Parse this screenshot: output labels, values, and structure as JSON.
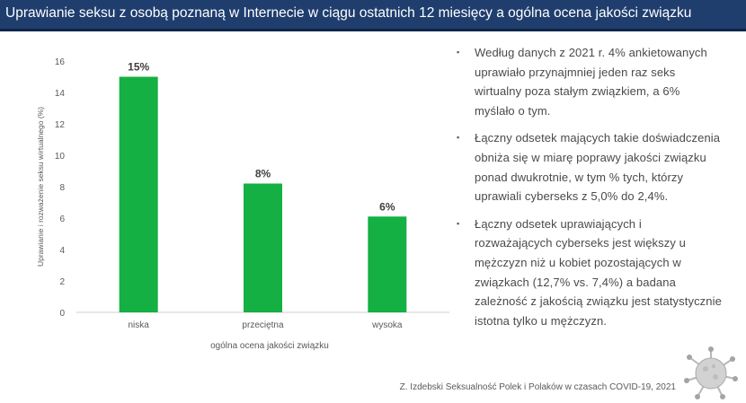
{
  "header": {
    "title": "Uprawianie seksu z osobą poznaną  w Internecie w ciągu ostatnich 12 miesięcy a ogólna ocena jakości związku"
  },
  "chart_data": {
    "type": "bar",
    "categories": [
      "niska",
      "przeciętna",
      "wysoka"
    ],
    "values": [
      15,
      8.2,
      6.1
    ],
    "data_labels": [
      "15%",
      "8%",
      "6%"
    ],
    "xlabel": "ogólna ocena jakości związku",
    "ylabel": "Uprawianie i rozważenie seksu wirtualnego (%)",
    "ylim": [
      0,
      16
    ],
    "yticks": [
      0,
      2,
      4,
      6,
      8,
      10,
      12,
      14,
      16
    ],
    "grid": false,
    "bar_color": "#14b043"
  },
  "bullets": [
    "Według danych z 2021 r.  4% ankietowanych uprawiało przynajmniej jeden raz seks wirtualny poza stałym związkiem, a 6% myślało o tym.",
    "Łączny odsetek mających takie doświadczenia obniża się w miarę poprawy jakości związku ponad dwukrotnie, w tym % tych, którzy uprawiali cyberseks z 5,0% do 2,4%.",
    "Łączny odsetek uprawiających i rozważających cyberseks jest większy u mężczyzn niż u kobiet pozostających w związkach (12,7% vs. 7,4%) a badana zależność  z jakością związku jest statystycznie istotna tylko u mężczyzn."
  ],
  "bullet_glyph": "▪",
  "source": "Z. Izdebski  Seksualność Polek i Polaków w czasach COVID-19, 2021",
  "decoration": {
    "icon": "coronavirus-icon"
  },
  "colors": {
    "title_bar": "#1f3e6e",
    "bars": "#14b043"
  }
}
